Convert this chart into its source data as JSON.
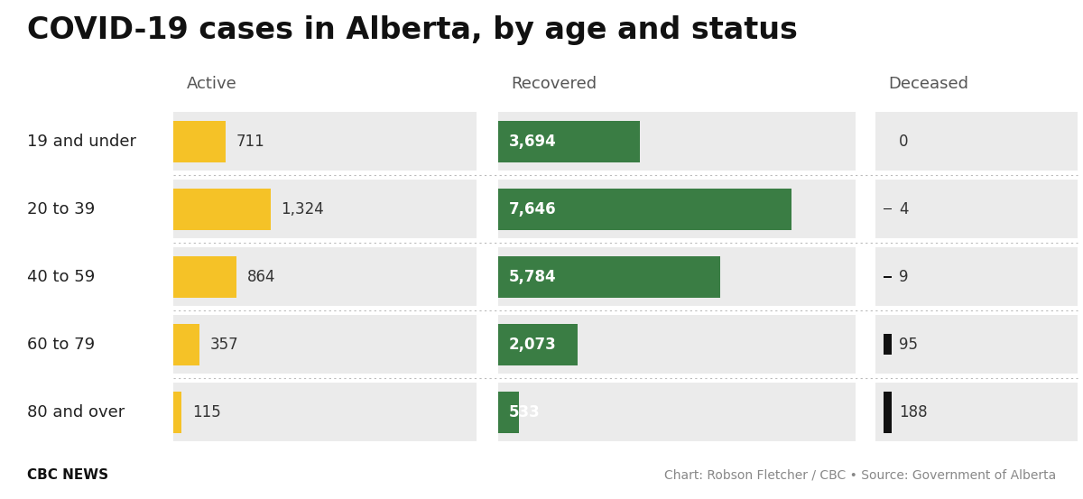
{
  "title": "COVID-19 cases in Alberta, by age and status",
  "age_groups": [
    "19 and under",
    "20 to 39",
    "40 to 59",
    "60 to 79",
    "80 and over"
  ],
  "active": [
    711,
    1324,
    864,
    357,
    115
  ],
  "recovered": [
    3694,
    7646,
    5784,
    2073,
    533
  ],
  "deceased": [
    0,
    4,
    9,
    95,
    188
  ],
  "active_color": "#F5C227",
  "recovered_color": "#3A7D44",
  "deceased_color": "#111111",
  "panel_bg": "#ebebeb",
  "footer_left": "CBC NEWS",
  "footer_right": "Chart: Robson Fletcher / CBC • Source: Government of Alberta",
  "col_headers": [
    "Active",
    "Recovered",
    "Deceased"
  ],
  "title_fontsize": 24,
  "label_fontsize": 13,
  "header_fontsize": 13,
  "value_fontsize": 12
}
